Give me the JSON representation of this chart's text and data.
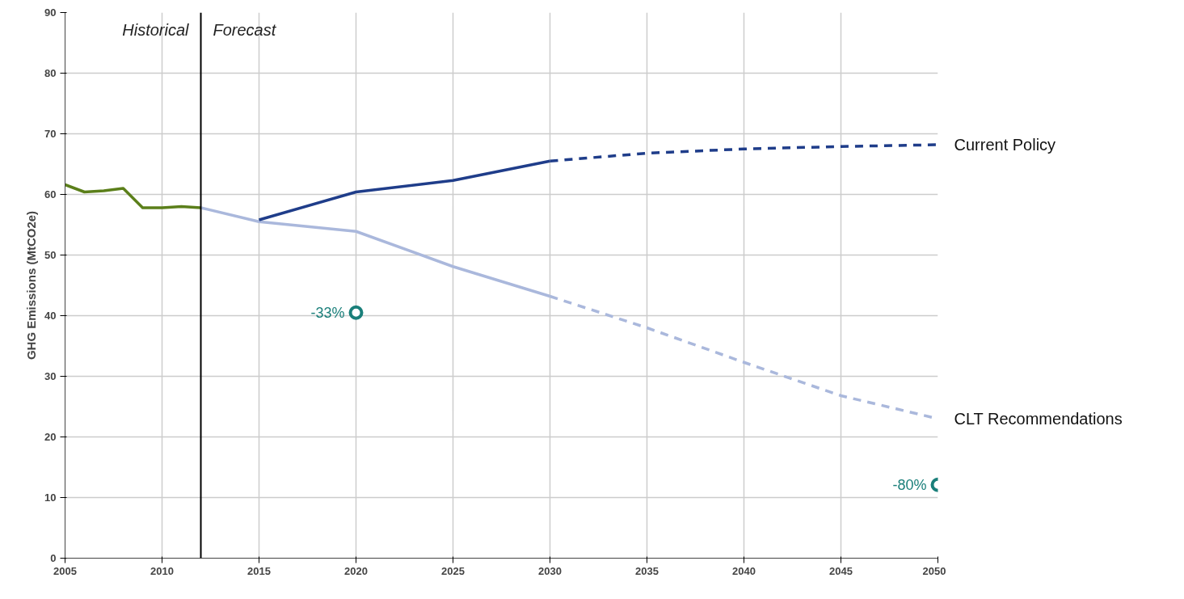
{
  "chart_data": {
    "type": "line",
    "ylabel": "GHG Emissions (MtCO2e)",
    "xlim": [
      2005,
      2050
    ],
    "ylim": [
      0,
      90
    ],
    "xticks": [
      2005,
      2010,
      2015,
      2020,
      2025,
      2030,
      2035,
      2040,
      2045,
      2050
    ],
    "yticks": [
      0,
      10,
      20,
      30,
      40,
      50,
      60,
      70,
      80,
      90
    ],
    "grid": true,
    "marker": "none",
    "series": [
      {
        "color": "#5b7f1a",
        "x": [
          2005,
          2006,
          2007,
          2008,
          2009,
          2010,
          2011,
          2012
        ],
        "values": [
          61.6,
          60.4,
          60.6,
          61.0,
          57.8,
          57.8,
          58.0,
          57.8
        ]
      },
      {
        "color": "#aab8dc",
        "x": [
          2012,
          2015,
          2020,
          2025,
          2030
        ],
        "values": [
          57.8,
          55.5,
          53.9,
          48.1,
          43.2
        ]
      },
      {
        "name": "CLT Recommendations",
        "color": "#aab8dc",
        "line_style": "dashed",
        "x": [
          2030,
          2035,
          2040,
          2045,
          2050
        ],
        "values": [
          43.2,
          38.0,
          32.3,
          26.8,
          23.0
        ]
      },
      {
        "color": "#1f3d8a",
        "x": [
          2015,
          2020,
          2025,
          2030
        ],
        "values": [
          55.8,
          60.4,
          62.3,
          65.5
        ]
      },
      {
        "name": "Current Policy",
        "color": "#1f3d8a",
        "line_style": "dashed",
        "x": [
          2030,
          2035,
          2040,
          2045,
          2050
        ],
        "values": [
          65.5,
          66.8,
          67.5,
          67.9,
          68.2
        ]
      },
      {
        "type": "scatter",
        "marker": "circle",
        "color": "#1a7f7a",
        "x": [
          2020,
          2050
        ],
        "values": [
          40.5,
          12.1
        ]
      }
    ],
    "ref_lines": [
      {
        "axis": "x",
        "value": 2012,
        "color": "#000000"
      }
    ],
    "annotations": [
      "Historical",
      "Forecast",
      {
        "text": "-33%",
        "x": 2020,
        "y": 40.5
      },
      {
        "text": "-80%",
        "x": 2050,
        "y": 12.1
      }
    ]
  }
}
